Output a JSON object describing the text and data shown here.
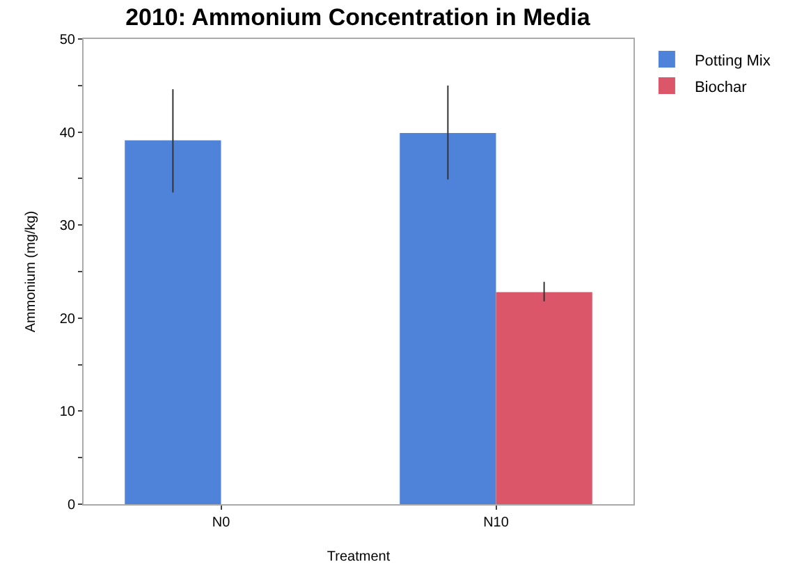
{
  "chart_data": {
    "type": "bar",
    "title": "2010: Ammonium Concentration in Media",
    "xlabel": "Treatment",
    "ylabel": "Ammonium (mg/kg)",
    "categories": [
      "N0",
      "N10"
    ],
    "series": [
      {
        "name": "Potting Mix",
        "color": "#4f83d9",
        "values": [
          39.1,
          39.9
        ],
        "errors": [
          [
            33.5,
            44.6
          ],
          [
            34.9,
            45.0
          ]
        ]
      },
      {
        "name": "Biochar",
        "color": "#db5668",
        "values": [
          null,
          22.8
        ],
        "errors": [
          null,
          [
            21.8,
            23.9
          ]
        ]
      }
    ],
    "ylim": [
      0,
      50
    ],
    "yticks": [
      0,
      {
        "value": 5,
        "label": null
      },
      10,
      {
        "value": 15,
        "label": null
      },
      20,
      {
        "value": 25,
        "label": null
      },
      30,
      {
        "value": 35,
        "label": null
      },
      40,
      {
        "value": 45,
        "label": null
      },
      50
    ],
    "legend": "top right"
  }
}
